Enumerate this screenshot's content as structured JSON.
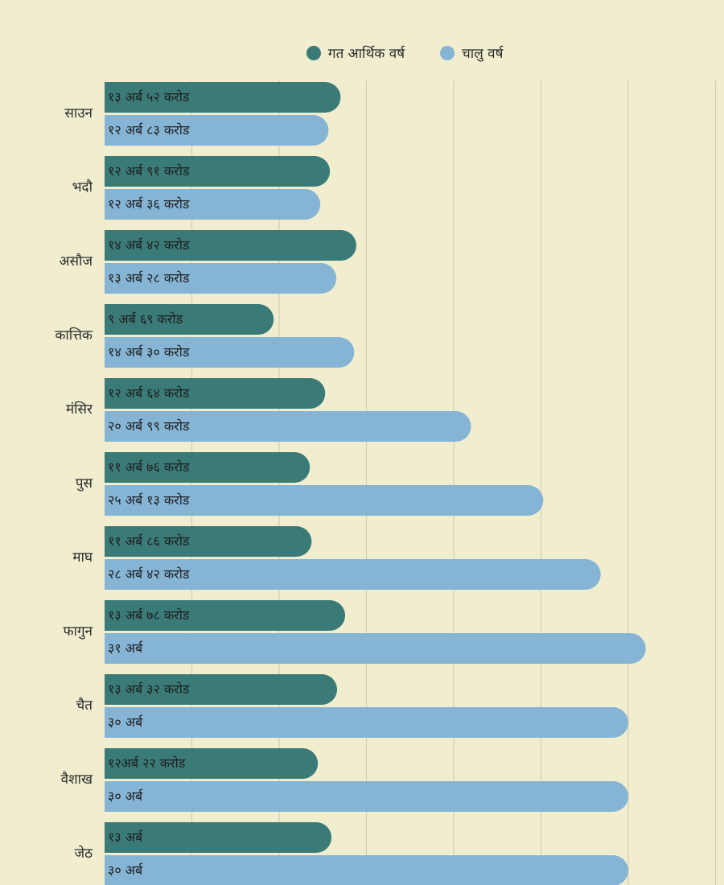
{
  "chart_data": {
    "type": "bar",
    "orientation": "horizontal",
    "title": "",
    "xlabel": "",
    "ylabel": "",
    "xlim": [
      0,
      35
    ],
    "grid": true,
    "legend_position": "top",
    "categories": [
      "साउन",
      "भदौ",
      "असौज",
      "कात्तिक",
      "मंसिर",
      "पुस",
      "माघ",
      "फागुन",
      "चैत",
      "वैशाख",
      "जेठ"
    ],
    "series": [
      {
        "name": "गत आर्थिक वर्ष",
        "color": "#3a7b78",
        "values": [
          13.52,
          12.91,
          14.42,
          9.69,
          12.64,
          11.76,
          11.86,
          13.78,
          13.32,
          12.22,
          13
        ],
        "labels": [
          "१३ अर्ब ५२ करोड",
          "१२ अर्ब ९१ करोड",
          "१४ अर्ब ४२ करोड",
          "९ अर्ब ६९ करोड",
          "१२ अर्ब ६४ करोड",
          "११ अर्ब ७६ करोड",
          "११ अर्ब ८६ करोड",
          "१३ अर्ब ७८ करोड",
          "१३ अर्ब ३२ करोड",
          "१२अर्ब २२ करोड",
          "१३ अर्ब"
        ]
      },
      {
        "name": "चालु वर्ष",
        "color": "#85b4d4",
        "values": [
          12.83,
          12.36,
          13.28,
          14.3,
          20.99,
          25.13,
          28.42,
          31,
          30,
          30,
          30
        ],
        "labels": [
          "१२ अर्ब ८३ करोड",
          "१२ अर्ब ३६ करोड",
          "१३ अर्ब २८ करोड",
          "१४ अर्ब ३० करोड",
          "२० अर्ब ९९ करोड",
          "२५ अर्ब १३ करोड",
          "२८ अर्ब ४२ करोड",
          "३१ अर्ब",
          "३० अर्ब",
          "३० अर्ब",
          "३० अर्ब"
        ]
      }
    ]
  }
}
